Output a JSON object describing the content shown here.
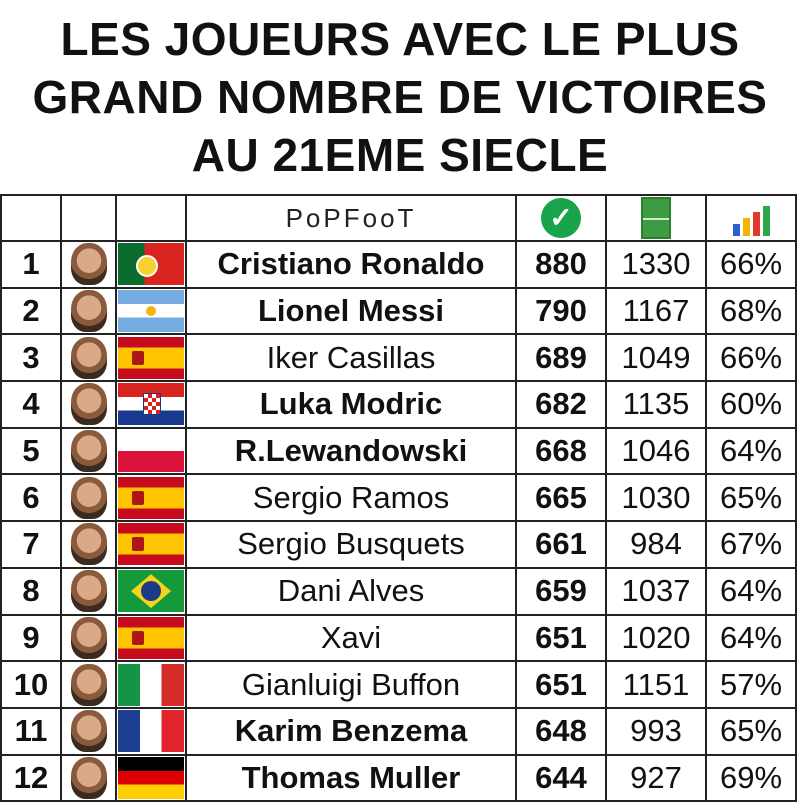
{
  "title": {
    "line1": "LES JOUEURS AVEC LE PLUS",
    "line2": "GRAND NOMBRE DE VICTOIRES",
    "line3": "AU 21EME SIECLE"
  },
  "header": {
    "brand": "PoPFooT",
    "wins_icon": "check-circle-icon",
    "matches_icon": "football-pitch-icon",
    "ratio_icon": "growth-chart-icon"
  },
  "rows": [
    {
      "rank": "1",
      "name": "Cristiano Ronaldo",
      "bold": true,
      "wins": "880",
      "matches": "1330",
      "pct": "66%",
      "country": "portugal"
    },
    {
      "rank": "2",
      "name": "Lionel Messi",
      "bold": true,
      "wins": "790",
      "matches": "1167",
      "pct": "68%",
      "country": "argentina"
    },
    {
      "rank": "3",
      "name": "Iker Casillas",
      "bold": false,
      "wins": "689",
      "matches": "1049",
      "pct": "66%",
      "country": "spain"
    },
    {
      "rank": "4",
      "name": "Luka Modric",
      "bold": true,
      "wins": "682",
      "matches": "1135",
      "pct": "60%",
      "country": "croatia"
    },
    {
      "rank": "5",
      "name": "R.Lewandowski",
      "bold": true,
      "wins": "668",
      "matches": "1046",
      "pct": "64%",
      "country": "poland"
    },
    {
      "rank": "6",
      "name": "Sergio Ramos",
      "bold": false,
      "wins": "665",
      "matches": "1030",
      "pct": "65%",
      "country": "spain"
    },
    {
      "rank": "7",
      "name": "Sergio Busquets",
      "bold": false,
      "wins": "661",
      "matches": "984",
      "pct": "67%",
      "country": "spain"
    },
    {
      "rank": "8",
      "name": "Dani Alves",
      "bold": false,
      "wins": "659",
      "matches": "1037",
      "pct": "64%",
      "country": "brazil"
    },
    {
      "rank": "9",
      "name": "Xavi",
      "bold": false,
      "wins": "651",
      "matches": "1020",
      "pct": "64%",
      "country": "spain"
    },
    {
      "rank": "10",
      "name": "Gianluigi Buffon",
      "bold": false,
      "wins": "651",
      "matches": "1151",
      "pct": "57%",
      "country": "italy"
    },
    {
      "rank": "11",
      "name": "Karim Benzema",
      "bold": true,
      "wins": "648",
      "matches": "993",
      "pct": "65%",
      "country": "france"
    },
    {
      "rank": "12",
      "name": "Thomas Muller",
      "bold": true,
      "wins": "644",
      "matches": "927",
      "pct": "69%",
      "country": "germany"
    }
  ],
  "colors": {
    "check": "#19a34a",
    "pitch": "#3f9b3f",
    "bars": [
      "#2c5fd1",
      "#f2b400",
      "#e03a2f",
      "#2ba84a"
    ]
  }
}
